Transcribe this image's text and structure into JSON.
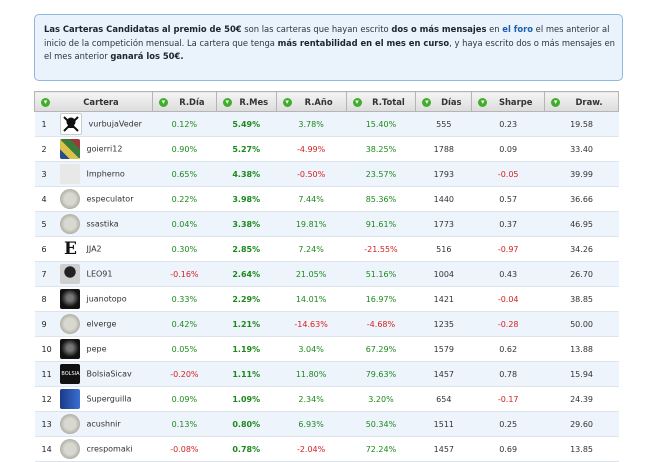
{
  "notice": {
    "p1": "Las Carteras Candidatas al premio de 50€",
    "p2": " son las carteras que hayan escrito ",
    "p3": "dos o más mensajes",
    "p4": " en ",
    "p5": "el foro",
    "p6": " el mes anterior al inicio de la competición mensual. La cartera que tenga ",
    "p7": "más rentabilidad en el mes en curso",
    "p8": ", y haya escrito dos o más mensajes en el mes anterior ",
    "p9": "ganará los 50€."
  },
  "table": {
    "headers": [
      "Cartera",
      "R.Día",
      "R.Mes",
      "R.Año",
      "R.Total",
      "Días",
      "Sharpe",
      "Draw."
    ],
    "rows": [
      {
        "n": "1",
        "name": "vurbujaVeder",
        "rdia": "0.12%",
        "rmes": "5.49%",
        "rano": "3.78%",
        "rtotal": "15.40%",
        "dias": "555",
        "sharpe": "0.23",
        "draw": "19.58",
        "avatar": "skull-avatar"
      },
      {
        "n": "2",
        "name": "goierri12",
        "rdia": "0.90%",
        "rmes": "5.27%",
        "rano": "-4.99%",
        "rtotal": "38.25%",
        "dias": "1788",
        "sharpe": "0.09",
        "draw": "33.40",
        "avatar": "mosaic-avatar"
      },
      {
        "n": "3",
        "name": "Impherno",
        "rdia": "0.65%",
        "rmes": "4.38%",
        "rano": "-0.50%",
        "rtotal": "23.57%",
        "dias": "1793",
        "sharpe": "-0.05",
        "draw": "39.99",
        "avatar": "blank-avatar"
      },
      {
        "n": "4",
        "name": "especulator",
        "rdia": "0.22%",
        "rmes": "3.98%",
        "rano": "7.44%",
        "rtotal": "85.36%",
        "dias": "1440",
        "sharpe": "0.57",
        "draw": "36.66",
        "avatar": "coin-avatar"
      },
      {
        "n": "5",
        "name": "ssastika",
        "rdia": "0.04%",
        "rmes": "3.38%",
        "rano": "19.81%",
        "rtotal": "91.61%",
        "dias": "1773",
        "sharpe": "0.37",
        "draw": "46.95",
        "avatar": "coin-avatar"
      },
      {
        "n": "6",
        "name": "JJA2",
        "rdia": "0.30%",
        "rmes": "2.85%",
        "rano": "7.24%",
        "rtotal": "-21.55%",
        "dias": "516",
        "sharpe": "-0.97",
        "draw": "34.26",
        "avatar": "letter-e-avatar"
      },
      {
        "n": "7",
        "name": "LEO91",
        "rdia": "-0.16%",
        "rmes": "2.64%",
        "rano": "21.05%",
        "rtotal": "51.16%",
        "dias": "1004",
        "sharpe": "0.43",
        "draw": "26.70",
        "avatar": "silhouette-avatar"
      },
      {
        "n": "8",
        "name": "juanotopo",
        "rdia": "0.33%",
        "rmes": "2.29%",
        "rano": "14.01%",
        "rtotal": "16.97%",
        "dias": "1421",
        "sharpe": "-0.04",
        "draw": "38.85",
        "avatar": "dark-face-avatar"
      },
      {
        "n": "9",
        "name": "elverge",
        "rdia": "0.42%",
        "rmes": "1.21%",
        "rano": "-14.63%",
        "rtotal": "-4.68%",
        "dias": "1235",
        "sharpe": "-0.28",
        "draw": "50.00",
        "avatar": "coin-avatar"
      },
      {
        "n": "10",
        "name": "pepe",
        "rdia": "0.05%",
        "rmes": "1.19%",
        "rano": "3.04%",
        "rtotal": "67.29%",
        "dias": "1579",
        "sharpe": "0.62",
        "draw": "13.88",
        "avatar": "dark-face-avatar"
      },
      {
        "n": "11",
        "name": "BolsiaSicav",
        "rdia": "-0.20%",
        "rmes": "1.11%",
        "rano": "11.80%",
        "rtotal": "79.63%",
        "dias": "1457",
        "sharpe": "0.78",
        "draw": "15.94",
        "avatar": "bolsia-logo-avatar"
      },
      {
        "n": "12",
        "name": "Superguilla",
        "rdia": "0.09%",
        "rmes": "1.09%",
        "rano": "2.34%",
        "rtotal": "3.20%",
        "dias": "654",
        "sharpe": "-0.17",
        "draw": "24.39",
        "avatar": "blue-cards-avatar"
      },
      {
        "n": "13",
        "name": "acushnir",
        "rdia": "0.13%",
        "rmes": "0.80%",
        "rano": "6.93%",
        "rtotal": "50.34%",
        "dias": "1511",
        "sharpe": "0.25",
        "draw": "29.60",
        "avatar": "coin-avatar"
      },
      {
        "n": "14",
        "name": "crespomaki",
        "rdia": "-0.08%",
        "rmes": "0.78%",
        "rano": "-2.04%",
        "rtotal": "72.24%",
        "dias": "1457",
        "sharpe": "0.69",
        "draw": "13.85",
        "avatar": "coin-avatar"
      }
    ]
  },
  "colors": {
    "positive": "#1b8a1b",
    "negative": "#d62020",
    "sort_icon": "#3fae2a"
  }
}
